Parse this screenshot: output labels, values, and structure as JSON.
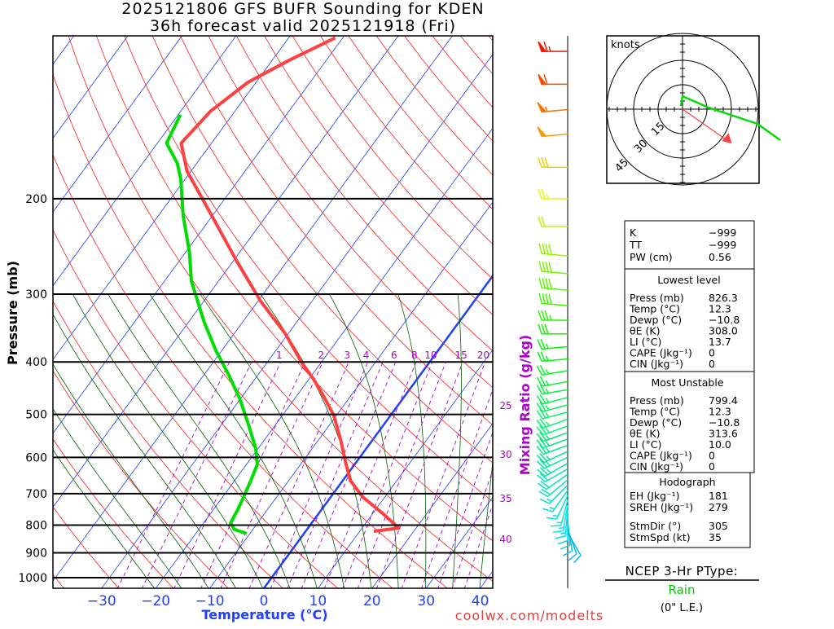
{
  "title": {
    "line1": "2025121806 GFS BUFR Sounding for KDEN",
    "line2": "36h forecast valid 2025121918 (Fri)"
  },
  "colors": {
    "temp": "#ff4040",
    "dewp": "#00dd00",
    "isotherm": "#2040ff",
    "dry_adiabat": "#ff2020",
    "moist_adiabat": "#006000",
    "mixing": "#b000d0",
    "rain": "#00cc00"
  },
  "chart_data": {
    "type": "line",
    "title": "2025121806 GFS BUFR Sounding for KDEN",
    "xlabel": "Temperature (°C)",
    "ylabel": "Pressure (mb)",
    "y2label": "Mixing Ratio (g/kg)",
    "xticks": [
      -30,
      -20,
      -10,
      0,
      10,
      20,
      30,
      40
    ],
    "yticks": [
      200,
      300,
      400,
      500,
      600,
      700,
      800,
      900,
      1000
    ],
    "ylim": [
      1046,
      100
    ],
    "mixing_ratio_top_labels": [
      1,
      2,
      3,
      4,
      6,
      8,
      10,
      15,
      20
    ],
    "mixing_ratio_side_labels": [
      25,
      30,
      35,
      40
    ],
    "temperature": {
      "p": [
        821,
        810,
        761,
        710,
        662,
        618,
        557,
        502,
        465,
        430,
        401,
        355,
        309,
        260,
        215,
        178,
        158,
        138,
        122,
        111,
        101
      ],
      "T": [
        12.6,
        16.8,
        11.8,
        5.9,
        1.4,
        -1.6,
        -5.9,
        -10.5,
        -14.7,
        -19.2,
        -23.6,
        -30.5,
        -39.5,
        -49.5,
        -60.1,
        -70.7,
        -75.6,
        -74.5,
        -71.5,
        -66.8,
        -61.4
      ]
    },
    "dewpoint": {
      "p": [
        829,
        815,
        793,
        748,
        705,
        662,
        618,
        577,
        520,
        469,
        422,
        381,
        337,
        284,
        251,
        215,
        184,
        172,
        158,
        140
      ],
      "T": [
        -10.6,
        -13.4,
        -15.0,
        -15.5,
        -16.2,
        -17.0,
        -18.0,
        -20.5,
        -25.2,
        -30.0,
        -35.5,
        -41.1,
        -47.2,
        -55.0,
        -59.3,
        -65.4,
        -70.8,
        -73.6,
        -78.3,
        -79.6
      ]
    },
    "winds": [
      [
        107,
        270,
        65
      ],
      [
        123,
        270,
        60
      ],
      [
        137,
        265,
        55
      ],
      [
        152,
        265,
        50
      ],
      [
        175,
        270,
        30
      ],
      [
        200,
        270,
        25
      ],
      [
        225,
        270,
        20
      ],
      [
        255,
        275,
        40
      ],
      [
        275,
        275,
        40
      ],
      [
        295,
        275,
        40
      ],
      [
        315,
        275,
        40
      ],
      [
        335,
        270,
        35
      ],
      [
        355,
        270,
        30
      ],
      [
        375,
        265,
        25
      ],
      [
        395,
        265,
        25
      ],
      [
        415,
        260,
        25
      ],
      [
        435,
        260,
        25
      ],
      [
        450,
        260,
        25
      ],
      [
        465,
        255,
        25
      ],
      [
        480,
        255,
        25
      ],
      [
        495,
        255,
        25
      ],
      [
        510,
        250,
        25
      ],
      [
        525,
        250,
        25
      ],
      [
        540,
        250,
        25
      ],
      [
        555,
        250,
        25
      ],
      [
        570,
        250,
        25
      ],
      [
        585,
        245,
        25
      ],
      [
        600,
        245,
        25
      ],
      [
        615,
        240,
        25
      ],
      [
        630,
        240,
        20
      ],
      [
        645,
        235,
        20
      ],
      [
        660,
        230,
        20
      ],
      [
        675,
        225,
        15
      ],
      [
        690,
        215,
        15
      ],
      [
        705,
        205,
        15
      ],
      [
        720,
        195,
        15
      ],
      [
        735,
        190,
        15
      ],
      [
        750,
        185,
        15
      ],
      [
        765,
        180,
        10
      ],
      [
        780,
        175,
        10
      ],
      [
        800,
        170,
        10
      ],
      [
        815,
        160,
        10
      ],
      [
        826,
        150,
        10
      ]
    ]
  },
  "hodograph": {
    "units_label": "knots",
    "rings": [
      15,
      30,
      45
    ],
    "trace_uv": [
      [
        -1,
        2
      ],
      [
        0,
        8
      ],
      [
        16,
        1
      ],
      [
        31,
        -4
      ],
      [
        46,
        -9
      ],
      [
        60,
        -19
      ]
    ],
    "storm_dir": 305,
    "storm_spd": 35
  },
  "indices": {
    "rows": [
      {
        "label": "K",
        "value": "−999"
      },
      {
        "label": "TT",
        "value": "−999"
      },
      {
        "label": "PW (cm)",
        "value": "0.56"
      }
    ],
    "lowest": {
      "heading": "Lowest level",
      "rows": [
        {
          "label": "Press (mb)",
          "value": "826.3"
        },
        {
          "label": "Temp (°C)",
          "value": "12.3"
        },
        {
          "label": "Dewp (°C)",
          "value": "−10.8"
        },
        {
          "label": "θE (K)",
          "value": "308.0"
        },
        {
          "label": "LI (°C)",
          "value": "13.7"
        },
        {
          "label": "CAPE (Jkg⁻¹)",
          "value": "0"
        },
        {
          "label": "CIN (Jkg⁻¹)",
          "value": "0"
        }
      ]
    },
    "unstable": {
      "heading": "Most Unstable",
      "rows": [
        {
          "label": "Press (mb)",
          "value": "799.4"
        },
        {
          "label": "Temp (°C)",
          "value": "12.3"
        },
        {
          "label": "Dewp (°C)",
          "value": "−10.8"
        },
        {
          "label": "θE (K)",
          "value": "313.6"
        },
        {
          "label": "LI (°C)",
          "value": "10.0"
        },
        {
          "label": "CAPE (Jkg⁻¹)",
          "value": "0"
        },
        {
          "label": "CIN (Jkg⁻¹)",
          "value": "0"
        }
      ]
    },
    "hodo": {
      "heading": "Hodograph",
      "rows": [
        {
          "label": "EH (Jkg⁻¹)",
          "value": "181"
        },
        {
          "label": "SREH (Jkg⁻¹)",
          "value": "279"
        },
        {
          "label": "StmDir (°)",
          "value": "305"
        },
        {
          "label": "StmSpd (kt)",
          "value": "35"
        }
      ]
    }
  },
  "ptype": {
    "heading": "NCEP 3-Hr PType:",
    "value": "Rain",
    "amount": "(0\" L.E.)"
  },
  "credit": "coolwx.com/modelts"
}
